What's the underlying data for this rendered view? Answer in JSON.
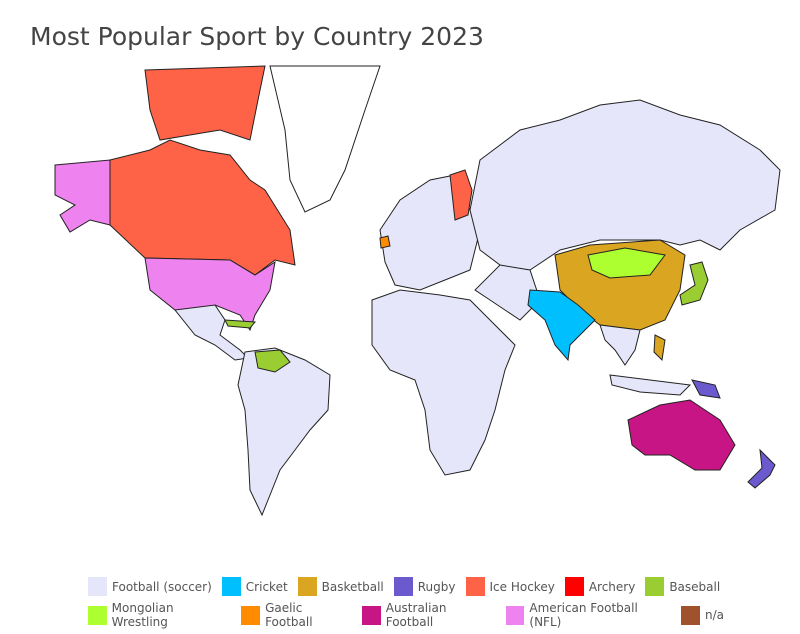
{
  "title": "Most Popular Sport by Country 2023",
  "legend": [
    {
      "label": "Football (soccer)",
      "color": "#e6e6fa"
    },
    {
      "label": "Cricket",
      "color": "#00bfff"
    },
    {
      "label": "Basketball",
      "color": "#daa520"
    },
    {
      "label": "Rugby",
      "color": "#6a5acd"
    },
    {
      "label": "Ice Hockey",
      "color": "#ff6347"
    },
    {
      "label": "Archery",
      "color": "#ff0000"
    },
    {
      "label": "Baseball",
      "color": "#9acd32"
    },
    {
      "label": "Mongolian Wrestling",
      "color": "#adff2f"
    },
    {
      "label": "Gaelic Football",
      "color": "#ff8c00"
    },
    {
      "label": "Australian Football",
      "color": "#c71585"
    },
    {
      "label": "American Football (NFL)",
      "color": "#ee82ee"
    },
    {
      "label": "n/a",
      "color": "#a0522d"
    }
  ],
  "regions": [
    {
      "country": "Greenland",
      "sport": "none"
    },
    {
      "country": "Canada",
      "sport": "Ice Hockey"
    },
    {
      "country": "Alaska",
      "sport": "American Football (NFL)"
    },
    {
      "country": "United States",
      "sport": "American Football (NFL)"
    },
    {
      "country": "Mexico & Central America",
      "sport": "Football (soccer)"
    },
    {
      "country": "Cuba",
      "sport": "Baseball"
    },
    {
      "country": "South America",
      "sport": "Football (soccer)"
    },
    {
      "country": "Venezuela",
      "sport": "Baseball"
    },
    {
      "country": "Europe",
      "sport": "Football (soccer)"
    },
    {
      "country": "Finland",
      "sport": "Ice Hockey"
    },
    {
      "country": "Ireland",
      "sport": "Gaelic Football"
    },
    {
      "country": "Russia & Asia",
      "sport": "Football (soccer)"
    },
    {
      "country": "Africa",
      "sport": "Football (soccer)"
    },
    {
      "country": "China",
      "sport": "Basketball"
    },
    {
      "country": "Mongolia",
      "sport": "Mongolian Wrestling"
    },
    {
      "country": "India",
      "sport": "Cricket"
    },
    {
      "country": "Japan",
      "sport": "Baseball"
    },
    {
      "country": "Philippines",
      "sport": "Basketball"
    },
    {
      "country": "Southeast Asia",
      "sport": "Football (soccer)"
    },
    {
      "country": "Papua New Guinea",
      "sport": "Rugby"
    },
    {
      "country": "Australia",
      "sport": "Australian Football"
    },
    {
      "country": "New Zealand",
      "sport": "Rugby"
    }
  ]
}
